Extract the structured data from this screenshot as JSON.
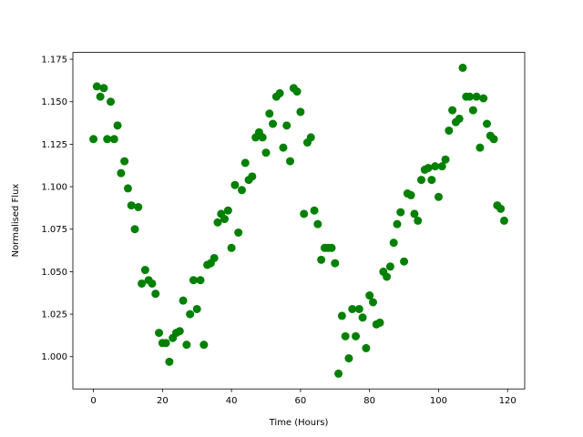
{
  "chart_data": {
    "type": "scatter",
    "xlabel": "Time (Hours)",
    "ylabel": "Normalised Flux",
    "color": "#008000",
    "x": [
      0,
      1,
      2,
      3,
      4,
      5,
      6,
      7,
      8,
      9,
      10,
      11,
      12,
      13,
      14,
      15,
      16,
      17,
      18,
      19,
      20,
      21,
      22,
      23,
      24,
      25,
      26,
      27,
      28,
      29,
      30,
      31,
      32,
      33,
      34,
      35,
      36,
      37,
      38,
      39,
      40,
      41,
      42,
      43,
      44,
      45,
      46,
      47,
      48,
      49,
      50,
      51,
      52,
      53,
      54,
      55,
      56,
      57,
      58,
      59,
      60,
      61,
      62,
      63,
      64,
      65,
      66,
      67,
      68,
      69,
      70,
      71,
      72,
      73,
      74,
      75,
      76,
      77,
      78,
      79,
      80,
      81,
      82,
      83,
      84,
      85,
      86,
      87,
      88,
      89,
      90,
      91,
      92,
      93,
      94,
      95,
      96,
      97,
      98,
      99,
      100,
      101,
      102,
      103,
      104,
      105,
      106,
      107,
      108,
      109,
      110,
      111,
      112,
      113,
      114,
      115,
      116,
      117,
      118,
      119
    ],
    "values": [
      1.128,
      1.159,
      1.153,
      1.158,
      1.128,
      1.15,
      1.128,
      1.136,
      1.108,
      1.115,
      1.099,
      1.089,
      1.075,
      1.088,
      1.043,
      1.051,
      1.045,
      1.043,
      1.037,
      1.014,
      1.008,
      1.008,
      0.997,
      1.011,
      1.014,
      1.015,
      1.033,
      1.007,
      1.025,
      1.045,
      1.028,
      1.045,
      1.007,
      1.054,
      1.055,
      1.058,
      1.079,
      1.084,
      1.081,
      1.086,
      1.064,
      1.101,
      1.073,
      1.098,
      1.114,
      1.104,
      1.106,
      1.129,
      1.132,
      1.129,
      1.12,
      1.143,
      1.137,
      1.153,
      1.155,
      1.123,
      1.136,
      1.115,
      1.158,
      1.156,
      1.144,
      1.084,
      1.126,
      1.129,
      1.086,
      1.078,
      1.057,
      1.064,
      1.064,
      1.064,
      1.055,
      0.99,
      1.024,
      1.012,
      0.999,
      1.028,
      1.012,
      1.028,
      1.023,
      1.005,
      1.036,
      1.032,
      1.019,
      1.02,
      1.05,
      1.047,
      1.053,
      1.067,
      1.078,
      1.085,
      1.056,
      1.096,
      1.095,
      1.084,
      1.08,
      1.104,
      1.11,
      1.111,
      1.104,
      1.112,
      1.094,
      1.112,
      1.116,
      1.133,
      1.145,
      1.138,
      1.14,
      1.17,
      1.153,
      1.153,
      1.145,
      1.153,
      1.123,
      1.152,
      1.137,
      1.13,
      1.128,
      1.089,
      1.087,
      1.08
    ],
    "xlim": [
      -5.95,
      124.95
    ],
    "xticks": [
      0,
      20,
      40,
      60,
      80,
      100,
      120
    ],
    "ylim": [
      0.981,
      1.179
    ],
    "yticks": [
      {
        "value": 1.0,
        "label": "1.000"
      },
      {
        "value": 1.025,
        "label": "1.025"
      },
      {
        "value": 1.05,
        "label": "1.050"
      },
      {
        "value": 1.075,
        "label": "1.075"
      },
      {
        "value": 1.1,
        "label": "1.100"
      },
      {
        "value": 1.125,
        "label": "1.125"
      },
      {
        "value": 1.15,
        "label": "1.150"
      },
      {
        "value": 1.175,
        "label": "1.175"
      }
    ]
  }
}
